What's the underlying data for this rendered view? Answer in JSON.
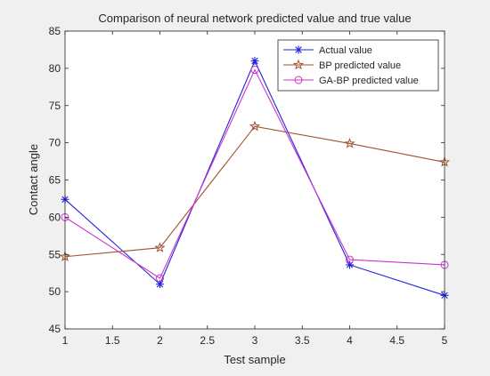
{
  "chart_data": {
    "type": "line",
    "title": "Comparison of neural network predicted value and true value",
    "xlabel": "Test sample",
    "ylabel": "Contact angle",
    "x": [
      1,
      2,
      3,
      4,
      5
    ],
    "xlim": [
      1,
      5
    ],
    "ylim": [
      45,
      85
    ],
    "xticks": [
      "1",
      "1.5",
      "2",
      "2.5",
      "3",
      "3.5",
      "4",
      "4.5",
      "5"
    ],
    "yticks": [
      "45",
      "50",
      "55",
      "60",
      "65",
      "70",
      "75",
      "80",
      "85"
    ],
    "grid": false,
    "legend_position": "top-right",
    "series": [
      {
        "name": "Actual value",
        "values": [
          62.4,
          51.0,
          81.0,
          53.6,
          49.5
        ],
        "color": "#2222dd",
        "marker": "asterisk"
      },
      {
        "name": "BP predicted value",
        "values": [
          54.7,
          55.9,
          72.2,
          69.9,
          67.4
        ],
        "color": "#a0522d",
        "marker": "star"
      },
      {
        "name": "GA-BP predicted value",
        "values": [
          60.0,
          51.8,
          79.8,
          54.3,
          53.6
        ],
        "color": "#cc33cc",
        "marker": "circle"
      }
    ]
  }
}
